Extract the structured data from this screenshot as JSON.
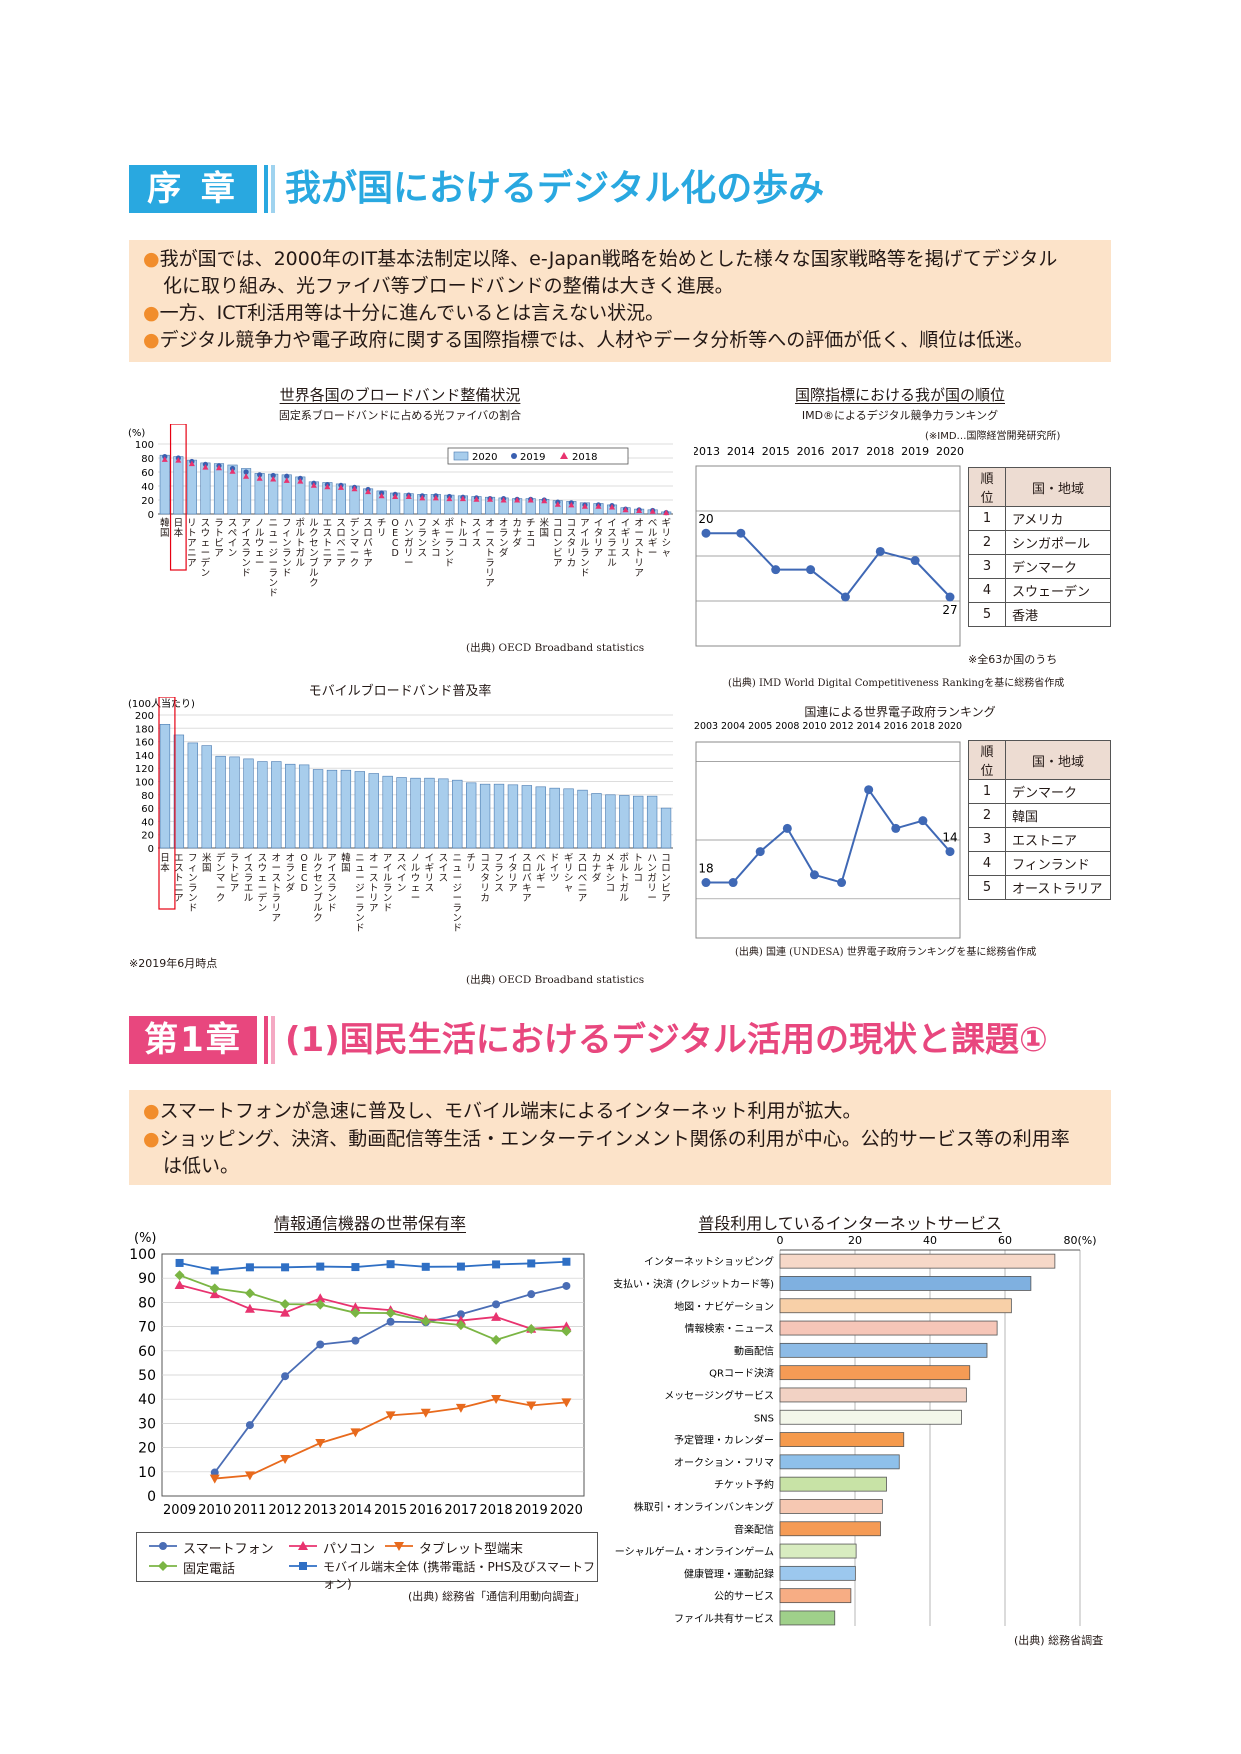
{
  "intro": {
    "chapter_label": "序 章",
    "title": "我が国におけるデジタル化の歩み",
    "bullets": [
      "我が国では、2000年のIT基本法制定以降、e-Japan戦略を始めとした様々な国家戦略等を掲げてデジタル",
      "化に取り組み、光ファイバ等ブロードバンドの整備は大きく進展。",
      "一方、ICT利活用等は十分に進んでいるとは言えない状況。",
      "デジタル競争力や電子政府に関する国際指標では、人材やデータ分析等への評価が低く、順位は低迷。"
    ],
    "colors": {
      "accent": "#29a8e0",
      "summary_bg": "#fce3c9",
      "bullet": "#f18d2c"
    }
  },
  "fiber": {
    "title": "世界各国のブロードバンド整備状況",
    "subtitle": "固定系ブロードバンドに占める光ファイバの割合",
    "unit": "(%)",
    "source": "(出典) OECD Broadband statistics",
    "legend": [
      "2020",
      "2019",
      "2018"
    ]
  },
  "mobile": {
    "title": "モバイルブロードバンド普及率",
    "unit": "(100人当たり)",
    "note": "※2019年6月時点",
    "source": "(出典) OECD Broadband statistics"
  },
  "imd": {
    "title": "国際指標における我が国の順位",
    "subtitle": "IMD®によるデジタル競争力ランキング",
    "note_right": "(※IMD…国際経営開発研究所)",
    "note_bottom": "※全63か国のうち",
    "source": "(出典) IMD World Digital Competitiveness Rankingを基に総務省作成",
    "table_head": [
      "順位",
      "国・地域"
    ],
    "table": [
      [
        "1",
        "アメリカ"
      ],
      [
        "2",
        "シンガポール"
      ],
      [
        "3",
        "デンマーク"
      ],
      [
        "4",
        "スウェーデン"
      ],
      [
        "5",
        "香港"
      ]
    ],
    "first_label": "20",
    "last_label": "27"
  },
  "un": {
    "title": "国連による世界電子政府ランキング",
    "source": "(出典) 国連 (UNDESA) 世界電子政府ランキングを基に総務省作成",
    "table_head": [
      "順位",
      "国・地域"
    ],
    "table": [
      [
        "1",
        "デンマーク"
      ],
      [
        "2",
        "韓国"
      ],
      [
        "3",
        "エストニア"
      ],
      [
        "4",
        "フィンランド"
      ],
      [
        "5",
        "オーストラリア"
      ]
    ],
    "first_label": "18",
    "last_label": "14"
  },
  "ch1": {
    "chapter_label": "第1章",
    "title": "(1)国民生活におけるデジタル活用の現状と課題①",
    "bullets": [
      "スマートフォンが急速に普及し、モバイル端末によるインターネット利用が拡大。",
      "ショッピング、決済、動画配信等生活・エンターテインメント関係の利用が中心。公的サービス等の利用率",
      "は低い。"
    ],
    "colors": {
      "accent": "#e8477e"
    }
  },
  "devices": {
    "title": "情報通信機器の世帯保有率",
    "unit": "(%)",
    "source": "(出典) 総務省「通信利用動向調査」",
    "legend": [
      "スマートフォン",
      "パソコン",
      "タブレット型端末",
      "固定電話",
      "モバイル端末全体 (携帯電話・PHS及びスマートフォン)"
    ]
  },
  "services": {
    "title": "普段利用しているインターネットサービス",
    "unit": "80(%)",
    "source": "(出典) 総務省調査"
  },
  "chart_data": [
    {
      "type": "bar",
      "title": "世界各国のブロードバンド整備状況",
      "subtitle": "固定系ブロードバンドに占める光ファイバの割合",
      "ylabel": "(%)",
      "ylim": [
        0,
        100
      ],
      "yticks": [
        0,
        20,
        40,
        60,
        80,
        100
      ],
      "categories": [
        "韓国",
        "日本",
        "リトアニア",
        "スウェーデン",
        "ラトビア",
        "スペイン",
        "アイスランド",
        "ノルウェー",
        "ニュージーランド",
        "フィンランド",
        "ポルトガル",
        "ルクセンブルク",
        "エストニア",
        "スロベニア",
        "デンマーク",
        "スロバキア",
        "チリ",
        "OECD",
        "ハンガリー",
        "フランス",
        "メキシコ",
        "ポーランド",
        "トルコ",
        "スイス",
        "オーストラリア",
        "オランダ",
        "カナダ",
        "チェコ",
        "米国",
        "コロンビア",
        "コスタリカ",
        "アイルランド",
        "イタリア",
        "イスラエル",
        "イギリス",
        "オーストリア",
        "ベルギー",
        "ギリシャ"
      ],
      "series": [
        {
          "name": "2020",
          "values": [
            84,
            82,
            77,
            73,
            72,
            70,
            65,
            58,
            57,
            56,
            53,
            46,
            45,
            43,
            40,
            36,
            33,
            30,
            29,
            28,
            28,
            27,
            26,
            25,
            24,
            23,
            22,
            22,
            21,
            19,
            18,
            16,
            15,
            13,
            9,
            7,
            6,
            3
          ]
        },
        {
          "name": "2019",
          "values": [
            82,
            80,
            75,
            71,
            69,
            65,
            60,
            56,
            55,
            54,
            51,
            44,
            42,
            41,
            38,
            35,
            30,
            28,
            27,
            26,
            26,
            25,
            24,
            23,
            22,
            22,
            21,
            21,
            20,
            17,
            16,
            13,
            13,
            12,
            7,
            6,
            5,
            2
          ]
        },
        {
          "name": "2018",
          "values": [
            78,
            77,
            72,
            67,
            66,
            61,
            54,
            51,
            50,
            48,
            47,
            41,
            39,
            38,
            36,
            32,
            26,
            25,
            25,
            23,
            23,
            22,
            22,
            21,
            21,
            20,
            20,
            20,
            19,
            14,
            13,
            11,
            11,
            10,
            6,
            5,
            4,
            2
          ]
        }
      ],
      "legend": "top-right"
    },
    {
      "type": "bar",
      "title": "モバイルブロードバンド普及率",
      "ylabel": "(100人当たり)",
      "ylim": [
        0,
        200
      ],
      "yticks": [
        0,
        20,
        40,
        60,
        80,
        100,
        120,
        140,
        160,
        180,
        200
      ],
      "categories": [
        "日本",
        "エストニア",
        "フィンランド",
        "米国",
        "デンマーク",
        "ラトビア",
        "イスラエル",
        "スウェーデン",
        "オーストラリア",
        "オランダ",
        "OECD",
        "ルクセンブルク",
        "アイスランド",
        "韓国",
        "ニュージーランド",
        "オーストリア",
        "アイルランド",
        "スペイン",
        "ノルウェー",
        "イギリス",
        "スイス",
        "ニュージーランド",
        "チリ",
        "コスタリカ",
        "フランス",
        "イタリア",
        "スロバキア",
        "ベルギー",
        "ドイツ",
        "ギリシャ",
        "スロベニア",
        "カナダ",
        "メキシコ",
        "ポルトガル",
        "トルコ",
        "ハンガリー",
        "コロンビア"
      ],
      "values": [
        186,
        170,
        158,
        154,
        138,
        137,
        134,
        130,
        130,
        126,
        125,
        118,
        117,
        117,
        115,
        112,
        108,
        106,
        105,
        105,
        104,
        102,
        98,
        96,
        96,
        95,
        94,
        92,
        90,
        89,
        87,
        82,
        80,
        79,
        78,
        78,
        60
      ]
    },
    {
      "type": "line",
      "title": "IMD®によるデジタル競争力ランキング",
      "x": [
        "2013",
        "2014",
        "2015",
        "2016",
        "2017",
        "2018",
        "2019",
        "2020"
      ],
      "y": [
        20,
        20,
        24,
        24,
        27,
        22,
        23,
        27
      ],
      "inverted": true
    },
    {
      "type": "line",
      "title": "国連による世界電子政府ランキング",
      "x": [
        "2003",
        "2004",
        "2005",
        "2008",
        "2010",
        "2012",
        "2014",
        "2016",
        "2018",
        "2020"
      ],
      "y": [
        18,
        18,
        14,
        11,
        17,
        18,
        6,
        11,
        10,
        14
      ],
      "inverted": true
    },
    {
      "type": "line",
      "title": "情報通信機器の世帯保有率",
      "ylabel": "(%)",
      "ylim": [
        0,
        100
      ],
      "yticks": [
        0,
        10,
        20,
        30,
        40,
        50,
        60,
        70,
        80,
        90,
        100
      ],
      "x": [
        "2009",
        "2010",
        "2011",
        "2012",
        "2013",
        "2014",
        "2015",
        "2016",
        "2017",
        "2018",
        "2019",
        "2020"
      ],
      "series": [
        {
          "name": "スマートフォン",
          "color": "#4a6db5",
          "marker": "circle",
          "values": [
            null,
            9.7,
            29.3,
            49.5,
            62.6,
            64.2,
            72.0,
            71.8,
            75.1,
            79.2,
            83.4,
            86.8
          ]
        },
        {
          "name": "パソコン",
          "color": "#e8336f",
          "marker": "triangle",
          "values": [
            87.2,
            83.4,
            77.4,
            75.8,
            81.7,
            78.0,
            76.8,
            73.0,
            72.5,
            74.0,
            69.1,
            70.1
          ]
        },
        {
          "name": "タブレット型端末",
          "color": "#e86a1d",
          "marker": "triangle-down",
          "values": [
            null,
            7.2,
            8.5,
            15.3,
            21.9,
            26.3,
            33.3,
            34.4,
            36.4,
            40.1,
            37.4,
            38.7
          ]
        },
        {
          "name": "固定電話",
          "color": "#7bb544",
          "marker": "diamond",
          "values": [
            91.2,
            85.8,
            83.8,
            79.3,
            79.1,
            75.7,
            75.6,
            72.2,
            70.6,
            64.5,
            69.0,
            68.1
          ]
        },
        {
          "name": "モバイル端末全体 (携帯電話・PHS及びスマートフォン)",
          "color": "#2f6fc4",
          "marker": "square",
          "values": [
            96.3,
            93.2,
            94.5,
            94.5,
            94.8,
            94.6,
            95.8,
            94.7,
            94.8,
            95.7,
            96.1,
            96.8
          ]
        }
      ],
      "legend": "bottom"
    },
    {
      "type": "bar",
      "orientation": "horizontal",
      "title": "普段利用しているインターネットサービス",
      "xlim": [
        0,
        80
      ],
      "xticks": [
        0,
        20,
        40,
        60,
        80
      ],
      "categories": [
        "インターネットショッピング",
        "支払い・決済 (クレジットカード等)",
        "地図・ナビゲーション",
        "情報検索・ニュース",
        "動画配信",
        "QRコード決済",
        "メッセージングサービス",
        "SNS",
        "予定管理・カレンダー",
        "オークション・フリマ",
        "チケット予約",
        "株取引・オンラインバンキング",
        "音楽配信",
        "ソーシャルゲーム・オンラインゲーム",
        "健康管理・運動記録",
        "公的サービス",
        "ファイル共有サービス"
      ],
      "values": [
        73.3,
        66.9,
        61.7,
        57.9,
        55.2,
        50.6,
        49.7,
        48.4,
        33.0,
        31.8,
        28.4,
        27.3,
        26.8,
        20.3,
        20.1,
        18.9,
        14.6
      ],
      "fills": [
        "#f6d8c8",
        "#7fb0e0",
        "#f8d0a8",
        "#f6c6b8",
        "#8dbbe6",
        "#f59b55",
        "#f2d2c4",
        "#f3f7ea",
        "#f59a4c",
        "#8ec0ea",
        "#c8e3a6",
        "#f6c8b2",
        "#f59b55",
        "#d8ecc0",
        "#9cc8ee",
        "#f7ad84",
        "#9fd08a"
      ]
    }
  ]
}
